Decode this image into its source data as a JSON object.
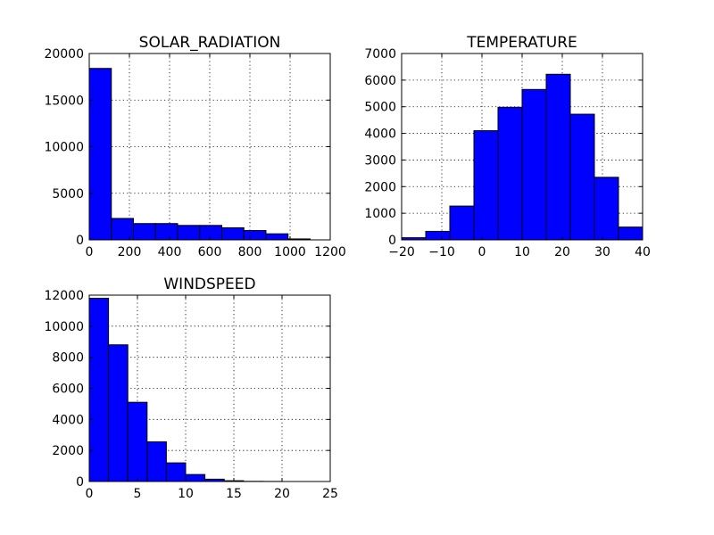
{
  "colors": {
    "bar_fill": "#0000ff",
    "edge": "#000000",
    "background": "#ffffff"
  },
  "chart_data": [
    {
      "type": "bar",
      "title": "SOLAR_RADIATION",
      "xlabel": "",
      "ylabel": "",
      "bin_edges": [
        0,
        110,
        220,
        330,
        440,
        550,
        660,
        770,
        880,
        990,
        1100
      ],
      "values": [
        18400,
        2300,
        1750,
        1750,
        1550,
        1550,
        1300,
        1000,
        650,
        100
      ],
      "xlim": [
        0,
        1200
      ],
      "ylim": [
        0,
        20000
      ],
      "xticks": [
        0,
        200,
        400,
        600,
        800,
        1000,
        1200
      ],
      "yticks": [
        0,
        5000,
        10000,
        15000,
        20000
      ],
      "grid": true,
      "legend": "none"
    },
    {
      "type": "bar",
      "title": "TEMPERATURE",
      "xlabel": "",
      "ylabel": "",
      "bin_edges": [
        -20,
        -14,
        -8,
        -2,
        4,
        10,
        16,
        22,
        28,
        34,
        40
      ],
      "values": [
        80,
        320,
        1270,
        4100,
        4980,
        5650,
        6220,
        4720,
        2350,
        480
      ],
      "xlim": [
        -20,
        40
      ],
      "ylim": [
        0,
        7000
      ],
      "xticks": [
        -20,
        -10,
        0,
        10,
        20,
        30,
        40
      ],
      "yticks": [
        0,
        1000,
        2000,
        3000,
        4000,
        5000,
        6000,
        7000
      ],
      "grid": true,
      "legend": "none"
    },
    {
      "type": "bar",
      "title": "WINDSPEED",
      "xlabel": "",
      "ylabel": "",
      "bin_edges": [
        0,
        2,
        4,
        6,
        8,
        10,
        12,
        14,
        16,
        18,
        20
      ],
      "values": [
        11800,
        8800,
        5100,
        2550,
        1200,
        450,
        150,
        50,
        10,
        5
      ],
      "xlim": [
        0,
        25
      ],
      "ylim": [
        0,
        12000
      ],
      "xticks": [
        0,
        5,
        10,
        15,
        20,
        25
      ],
      "yticks": [
        0,
        2000,
        4000,
        6000,
        8000,
        10000,
        12000
      ],
      "grid": true,
      "legend": "none"
    }
  ]
}
